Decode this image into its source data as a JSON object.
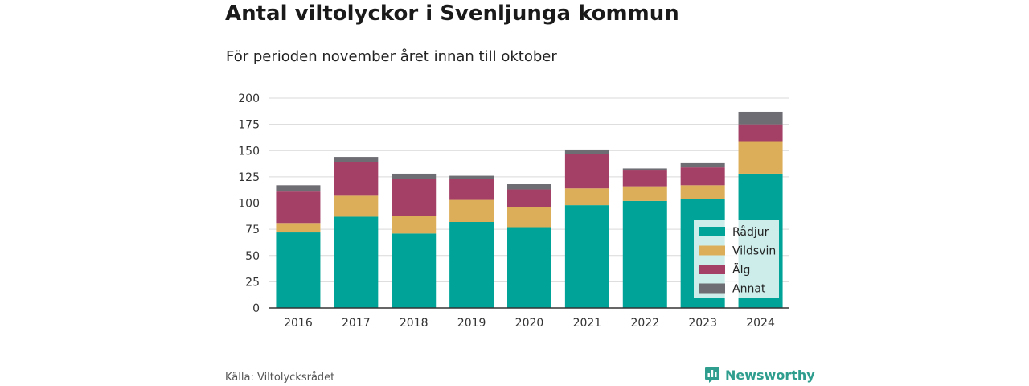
{
  "title": "Antal viltolyckor i Svenljunga kommun",
  "subtitle": "För perioden november året innan till oktober",
  "source": "Källa: Viltolycksrådet",
  "brand": {
    "name": "Newsworthy",
    "icon": "newsworthy-logo-icon"
  },
  "colors": {
    "Rådjur": "#00a398",
    "Vildsvin": "#dcae59",
    "Älg": "#a43f65",
    "Annat": "#6e6d73",
    "grid": "#d9d9d9",
    "axis": "#333333"
  },
  "chart_data": {
    "type": "bar",
    "stacked": true,
    "categories": [
      "2016",
      "2017",
      "2018",
      "2019",
      "2020",
      "2021",
      "2022",
      "2023",
      "2024"
    ],
    "series": [
      {
        "name": "Rådjur",
        "values": [
          72,
          87,
          71,
          82,
          77,
          98,
          102,
          104,
          128
        ]
      },
      {
        "name": "Vildsvin",
        "values": [
          9,
          20,
          17,
          21,
          19,
          16,
          14,
          13,
          31
        ]
      },
      {
        "name": "Älg",
        "values": [
          30,
          32,
          35,
          20,
          17,
          33,
          15,
          17,
          16
        ]
      },
      {
        "name": "Annat",
        "values": [
          6,
          5,
          5,
          3,
          5,
          4,
          2,
          4,
          12
        ]
      }
    ],
    "yticks": [
      0,
      25,
      50,
      75,
      100,
      125,
      150,
      175,
      200
    ],
    "ylim": [
      0,
      200
    ],
    "grid": true,
    "legend_position": "bottom-right",
    "legend_order": [
      "Rådjur",
      "Vildsvin",
      "Älg",
      "Annat"
    ]
  }
}
